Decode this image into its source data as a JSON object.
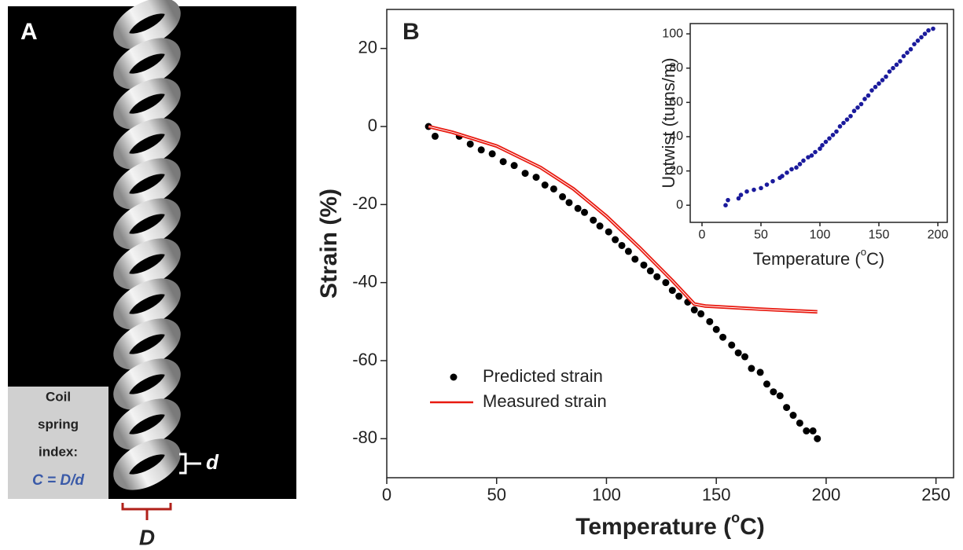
{
  "panel_a": {
    "label": "A",
    "index_lines": [
      "Coil",
      "spring",
      "index:"
    ],
    "formula": "C = D/d",
    "d_label": "d",
    "D_label": "D"
  },
  "chart_data": [
    {
      "type": "scatter",
      "panel_label": "B",
      "x_label": [
        "Temperature (",
        "o",
        "C)"
      ],
      "y_label": "Strain (%)",
      "xlim": [
        0,
        258
      ],
      "ylim": [
        -90,
        30
      ],
      "xticks": [
        0,
        50,
        100,
        150,
        200,
        250
      ],
      "yticks": [
        -80,
        -60,
        -40,
        -20,
        0,
        20
      ],
      "legend": "lower left",
      "series": [
        {
          "name": "Predicted strain",
          "type": "scatter",
          "color": "#000000",
          "x": [
            19,
            22,
            33,
            38,
            43,
            48,
            53,
            58,
            63,
            68,
            72,
            76,
            80,
            83,
            87,
            90,
            94,
            97,
            101,
            104,
            107,
            110,
            113,
            117,
            120,
            123,
            127,
            130,
            133,
            137,
            140,
            143,
            147,
            150,
            153,
            157,
            160,
            163,
            166,
            170,
            173,
            176,
            179,
            182,
            185,
            188,
            191,
            194,
            196
          ],
          "values": [
            0,
            -2.5,
            -2.5,
            -4.5,
            -6,
            -7,
            -9,
            -10,
            -12,
            -13,
            -15,
            -16,
            -18,
            -19.5,
            -21,
            -22,
            -24,
            -25.5,
            -27,
            -29,
            -30.5,
            -32,
            -34,
            -35.5,
            -37,
            -38.5,
            -40,
            -42,
            -43.5,
            -45,
            -47,
            -48,
            -50,
            -52,
            -54,
            -56,
            -58,
            -59,
            -62,
            -63,
            -66,
            -68,
            -69,
            -72,
            -74,
            -76,
            -78,
            -78,
            -80
          ]
        },
        {
          "name": "Measured strain",
          "type": "line",
          "color": "#e8190f",
          "x": [
            19,
            30,
            50,
            70,
            85,
            100,
            115,
            130,
            140,
            145,
            170,
            196
          ],
          "values": [
            0,
            -1.5,
            -5,
            -10.5,
            -16,
            -23,
            -31,
            -39.5,
            -45.5,
            -46,
            -46.8,
            -47.5
          ]
        }
      ]
    },
    {
      "type": "scatter",
      "x_label": [
        "Temperature (",
        "o",
        "C)"
      ],
      "y_label": "Untwist (turns/m)",
      "xlim": [
        -10,
        208
      ],
      "ylim": [
        -10,
        106
      ],
      "xticks": [
        0,
        50,
        100,
        150,
        200
      ],
      "yticks": [
        0,
        20,
        40,
        60,
        80,
        100
      ],
      "series": [
        {
          "type": "scatter",
          "color": "#1a1a9c",
          "x": [
            20,
            22,
            31,
            33,
            38,
            44,
            50,
            55,
            60,
            66,
            68,
            72,
            76,
            80,
            83,
            86,
            90,
            93,
            96,
            100,
            102,
            105,
            108,
            111,
            114,
            117,
            120,
            123,
            126,
            129,
            132,
            135,
            138,
            141,
            144,
            147,
            150,
            153,
            156,
            159,
            162,
            165,
            168,
            171,
            174,
            177,
            180,
            183,
            186,
            189,
            192,
            196
          ],
          "values": [
            0,
            3,
            4,
            6,
            8,
            9,
            10,
            12,
            14,
            16,
            17,
            19,
            21,
            22,
            24,
            26,
            28,
            29,
            31,
            33,
            35,
            37,
            39,
            41,
            43,
            46,
            48,
            50,
            52,
            55,
            57,
            59,
            62,
            64,
            67,
            69,
            71,
            73,
            75,
            78,
            80,
            82,
            84,
            87,
            89,
            91,
            94,
            96,
            98,
            100,
            102,
            103
          ]
        }
      ]
    }
  ]
}
